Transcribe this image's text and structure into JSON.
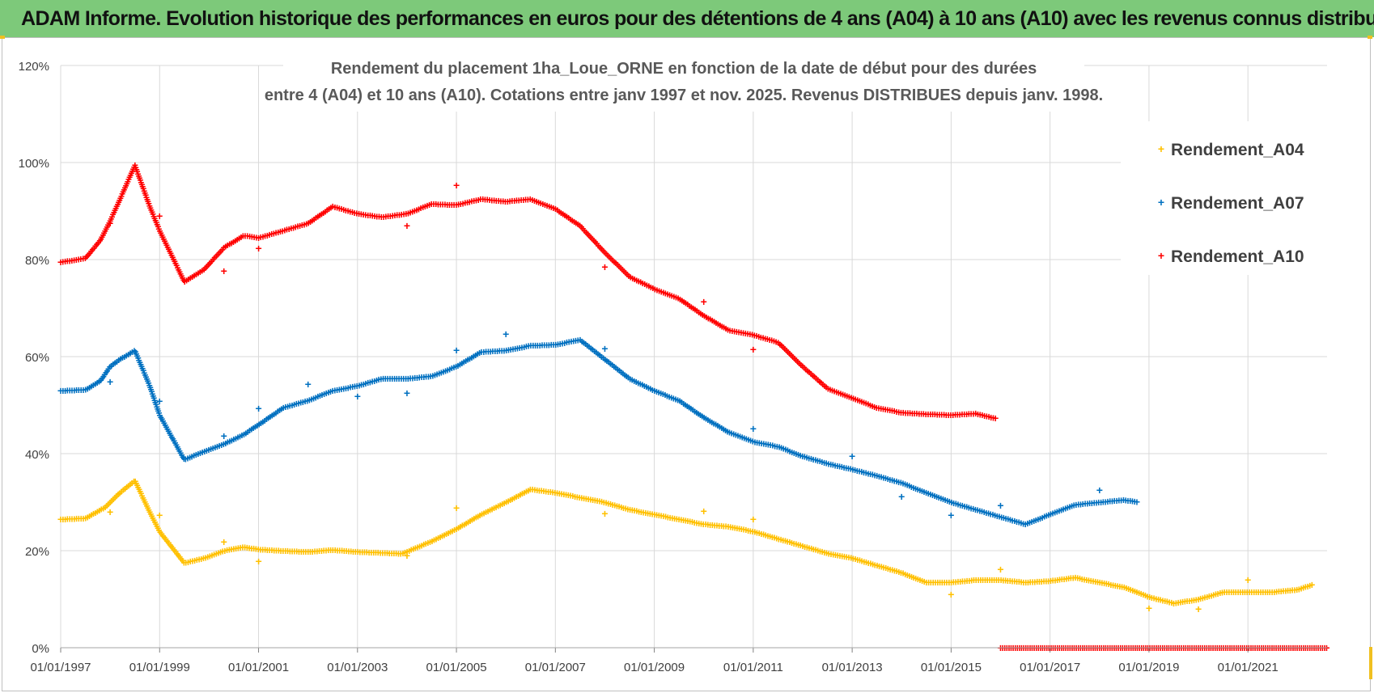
{
  "banner": {
    "title": "ADAM Informe. Evolution historique des performances en euros pour des détentions de 4 ans (A04) à 10 ans (A10) avec les revenus connus distribués"
  },
  "colors": {
    "banner_bg": "#7dc97a",
    "A04": "#ffc000",
    "A07": "#0070c0",
    "A10": "#ff0000",
    "grid": "#d9d9d9",
    "axis_text": "#404040"
  },
  "chart_data": {
    "type": "scatter",
    "title_lines": [
      "Rendement du placement 1ha_Loue_ORNE en fonction de la date de début pour des durées",
      "entre 4 (A04) et 10 ans (A10). Cotations entre janv 1997 et nov. 2025. Revenus DISTRIBUES depuis janv. 1998."
    ],
    "xlabel": "",
    "ylabel": "",
    "x_range": [
      1997.0,
      2022.6
    ],
    "ylim": [
      0,
      120
    ],
    "yticks": [
      0,
      20,
      40,
      60,
      80,
      100,
      120
    ],
    "ytick_labels": [
      "0%",
      "20%",
      "40%",
      "60%",
      "80%",
      "100%",
      "120%"
    ],
    "xticks": [
      1997,
      1999,
      2001,
      2003,
      2005,
      2007,
      2009,
      2011,
      2013,
      2015,
      2017,
      2019,
      2021
    ],
    "xtick_labels": [
      "01/01/1997",
      "01/01/1999",
      "01/01/2001",
      "01/01/2003",
      "01/01/2005",
      "01/01/2007",
      "01/01/2009",
      "01/01/2011",
      "01/01/2013",
      "01/01/2015",
      "01/01/2017",
      "01/01/2019",
      "01/01/2021"
    ],
    "grid": true,
    "legend_position": "top-right",
    "marker": "+",
    "series": [
      {
        "name": "Rendement_A04",
        "color": "#ffc000",
        "points": [
          [
            1997.0,
            26.5
          ],
          [
            1997.5,
            26.7
          ],
          [
            1997.9,
            29.0
          ],
          [
            1998.2,
            32.0
          ],
          [
            1998.5,
            34.5
          ],
          [
            1998.8,
            28.0
          ],
          [
            1999.0,
            24.0
          ],
          [
            1999.5,
            17.5
          ],
          [
            1999.9,
            18.5
          ],
          [
            2000.3,
            20.0
          ],
          [
            2000.7,
            20.8
          ],
          [
            2001.0,
            20.3
          ],
          [
            2001.5,
            20.0
          ],
          [
            2002.0,
            19.8
          ],
          [
            2002.5,
            20.2
          ],
          [
            2003.0,
            19.8
          ],
          [
            2003.5,
            19.6
          ],
          [
            2003.9,
            19.4
          ],
          [
            2004.5,
            22.0
          ],
          [
            2005.0,
            24.5
          ],
          [
            2005.5,
            27.5
          ],
          [
            2006.0,
            30.0
          ],
          [
            2006.5,
            32.7
          ],
          [
            2007.0,
            32.0
          ],
          [
            2007.5,
            31.0
          ],
          [
            2008.0,
            30.0
          ],
          [
            2008.5,
            28.5
          ],
          [
            2009.0,
            27.5
          ],
          [
            2009.5,
            26.5
          ],
          [
            2010.0,
            25.5
          ],
          [
            2010.5,
            25.0
          ],
          [
            2011.0,
            24.0
          ],
          [
            2011.5,
            22.5
          ],
          [
            2012.0,
            21.0
          ],
          [
            2012.5,
            19.5
          ],
          [
            2013.0,
            18.5
          ],
          [
            2013.5,
            17.0
          ],
          [
            2014.0,
            15.5
          ],
          [
            2014.5,
            13.5
          ],
          [
            2015.0,
            13.5
          ],
          [
            2015.5,
            14.0
          ],
          [
            2016.0,
            14.0
          ],
          [
            2016.5,
            13.5
          ],
          [
            2017.0,
            13.8
          ],
          [
            2017.5,
            14.5
          ],
          [
            2018.0,
            13.5
          ],
          [
            2018.5,
            12.5
          ],
          [
            2019.0,
            10.5
          ],
          [
            2019.5,
            9.2
          ],
          [
            2020.0,
            10.0
          ],
          [
            2020.5,
            11.5
          ],
          [
            2021.0,
            11.5
          ],
          [
            2021.5,
            11.5
          ],
          [
            2022.0,
            12.0
          ],
          [
            2022.3,
            13.0
          ]
        ],
        "outliers": [
          [
            1998.0,
            28.0
          ],
          [
            1999.0,
            27.3
          ],
          [
            2000.3,
            21.8
          ],
          [
            2001.0,
            17.8
          ],
          [
            2004.0,
            19.0
          ],
          [
            2005.0,
            28.8
          ],
          [
            2008.0,
            27.7
          ],
          [
            2010.0,
            28.2
          ],
          [
            2011.0,
            26.5
          ],
          [
            2015.0,
            11.0
          ],
          [
            2016.0,
            16.2
          ],
          [
            2019.0,
            8.2
          ],
          [
            2020.0,
            8.0
          ],
          [
            2021.0,
            14.0
          ]
        ]
      },
      {
        "name": "Rendement_A07",
        "color": "#0070c0",
        "points": [
          [
            1997.0,
            53.0
          ],
          [
            1997.5,
            53.2
          ],
          [
            1997.8,
            55.0
          ],
          [
            1998.0,
            58.0
          ],
          [
            1998.2,
            59.5
          ],
          [
            1998.5,
            61.3
          ],
          [
            1998.8,
            54.0
          ],
          [
            1999.0,
            48.0
          ],
          [
            1999.5,
            38.8
          ],
          [
            1999.9,
            40.5
          ],
          [
            2000.3,
            42.0
          ],
          [
            2000.7,
            44.0
          ],
          [
            2001.0,
            46.0
          ],
          [
            2001.5,
            49.5
          ],
          [
            2002.0,
            51.0
          ],
          [
            2002.5,
            53.0
          ],
          [
            2003.0,
            54.0
          ],
          [
            2003.5,
            55.5
          ],
          [
            2004.0,
            55.5
          ],
          [
            2004.5,
            56.0
          ],
          [
            2005.0,
            58.0
          ],
          [
            2005.5,
            61.0
          ],
          [
            2006.0,
            61.3
          ],
          [
            2006.5,
            62.3
          ],
          [
            2007.0,
            62.5
          ],
          [
            2007.5,
            63.5
          ],
          [
            2008.0,
            59.5
          ],
          [
            2008.5,
            55.5
          ],
          [
            2009.0,
            53.0
          ],
          [
            2009.5,
            51.0
          ],
          [
            2010.0,
            47.5
          ],
          [
            2010.5,
            44.5
          ],
          [
            2011.0,
            42.5
          ],
          [
            2011.5,
            41.5
          ],
          [
            2012.0,
            39.5
          ],
          [
            2012.5,
            38.0
          ],
          [
            2013.0,
            36.8
          ],
          [
            2013.5,
            35.5
          ],
          [
            2014.0,
            34.0
          ],
          [
            2014.5,
            32.0
          ],
          [
            2015.0,
            30.0
          ],
          [
            2015.5,
            28.5
          ],
          [
            2016.0,
            27.0
          ],
          [
            2016.5,
            25.5
          ],
          [
            2017.0,
            27.5
          ],
          [
            2017.5,
            29.5
          ],
          [
            2018.0,
            30.0
          ],
          [
            2018.5,
            30.5
          ],
          [
            2018.8,
            30.0
          ]
        ],
        "outliers": [
          [
            1998.0,
            54.8
          ],
          [
            1999.0,
            50.8
          ],
          [
            2000.3,
            43.7
          ],
          [
            2001.0,
            49.3
          ],
          [
            2002.0,
            54.3
          ],
          [
            2003.0,
            51.8
          ],
          [
            2004.0,
            52.5
          ],
          [
            2005.0,
            61.3
          ],
          [
            2006.0,
            64.7
          ],
          [
            2008.0,
            61.7
          ],
          [
            2011.0,
            45.2
          ],
          [
            2013.0,
            39.5
          ],
          [
            2014.0,
            31.2
          ],
          [
            2015.0,
            27.3
          ],
          [
            2016.0,
            29.3
          ],
          [
            2018.0,
            32.5
          ]
        ]
      },
      {
        "name": "Rendement_A10",
        "color": "#ff0000",
        "points": [
          [
            1997.0,
            79.5
          ],
          [
            1997.5,
            80.3
          ],
          [
            1997.8,
            84.0
          ],
          [
            1998.0,
            88.0
          ],
          [
            1998.2,
            92.5
          ],
          [
            1998.5,
            99.5
          ],
          [
            1998.8,
            91.0
          ],
          [
            1999.0,
            86.0
          ],
          [
            1999.5,
            75.5
          ],
          [
            1999.9,
            78.0
          ],
          [
            2000.3,
            82.5
          ],
          [
            2000.7,
            85.0
          ],
          [
            2001.0,
            84.5
          ],
          [
            2001.5,
            86.0
          ],
          [
            2002.0,
            87.5
          ],
          [
            2002.5,
            91.0
          ],
          [
            2003.0,
            89.5
          ],
          [
            2003.5,
            88.8
          ],
          [
            2004.0,
            89.5
          ],
          [
            2004.5,
            91.5
          ],
          [
            2005.0,
            91.3
          ],
          [
            2005.5,
            92.5
          ],
          [
            2006.0,
            92.0
          ],
          [
            2006.5,
            92.5
          ],
          [
            2007.0,
            90.5
          ],
          [
            2007.5,
            87.0
          ],
          [
            2008.0,
            81.5
          ],
          [
            2008.5,
            76.5
          ],
          [
            2009.0,
            74.0
          ],
          [
            2009.5,
            72.0
          ],
          [
            2010.0,
            68.5
          ],
          [
            2010.5,
            65.5
          ],
          [
            2011.0,
            64.5
          ],
          [
            2011.5,
            63.0
          ],
          [
            2012.0,
            58.0
          ],
          [
            2012.5,
            53.5
          ],
          [
            2013.0,
            51.5
          ],
          [
            2013.5,
            49.5
          ],
          [
            2014.0,
            48.5
          ],
          [
            2014.5,
            48.2
          ],
          [
            2015.0,
            48.0
          ],
          [
            2015.5,
            48.3
          ],
          [
            2015.9,
            47.3
          ]
        ],
        "outliers": [
          [
            1998.0,
            87.5
          ],
          [
            1999.0,
            89.0
          ],
          [
            2000.3,
            77.7
          ],
          [
            2001.0,
            82.3
          ],
          [
            2004.0,
            87.0
          ],
          [
            2005.0,
            95.3
          ],
          [
            2008.0,
            78.5
          ],
          [
            2010.0,
            71.3
          ],
          [
            2011.0,
            61.5
          ]
        ],
        "zero_run": [
          2016.0,
          2022.6
        ]
      }
    ]
  }
}
